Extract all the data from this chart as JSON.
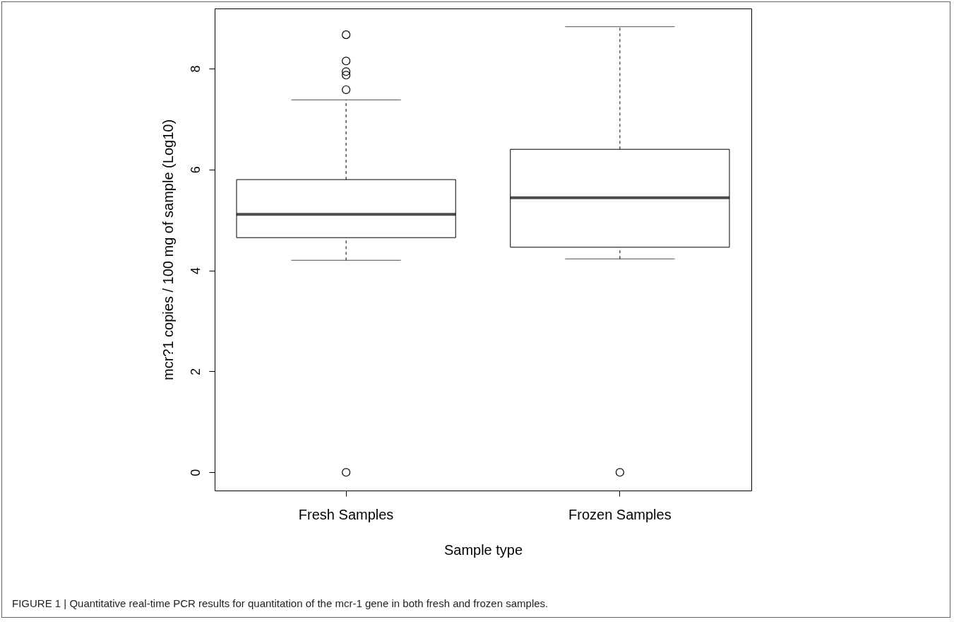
{
  "chart_data": {
    "type": "box",
    "xlabel": "Sample type",
    "ylabel": "mcr?1 copies / 100 mg of sample (Log10)",
    "categories": [
      "Fresh Samples",
      "Frozen Samples"
    ],
    "boxes": [
      {
        "low": 4.2,
        "q1": 4.65,
        "median": 5.11,
        "q3": 5.8,
        "high": 7.38,
        "outliers": [
          8.67,
          8.15,
          7.94,
          7.87,
          7.58,
          0
        ]
      },
      {
        "low": 4.23,
        "q1": 4.46,
        "median": 5.44,
        "q3": 6.4,
        "high": 8.83,
        "outliers": [
          0
        ]
      }
    ],
    "ylim": [
      -0.36,
      9.19
    ],
    "yticks": [
      0,
      2,
      4,
      6,
      8
    ],
    "grid": false,
    "marker": "circle",
    "annotations": [
      "FIGURE 1 | Quantitative real-time PCR results for quantitation of the mcr-1 gene in both fresh and frozen samples."
    ]
  }
}
